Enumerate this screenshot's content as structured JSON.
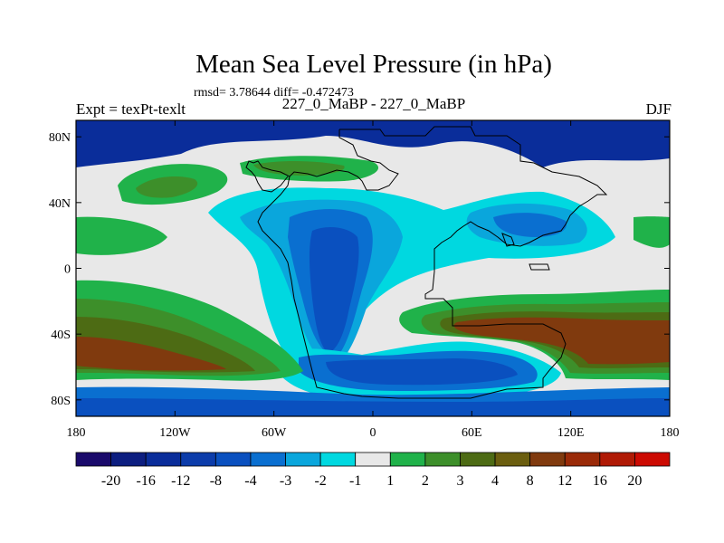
{
  "chart_data": {
    "type": "heatmap",
    "title": "Mean Sea Level Pressure (in hPa)",
    "stats_text": "rmsd= 3.78644 diff= -0.472473",
    "left_label": "Expt = texPt-texlt",
    "center_label": "227_0_MaBP - 227_0_MaBP",
    "right_label": "DJF",
    "x_axis": {
      "range": [
        -180,
        180
      ],
      "ticks": [
        {
          "value": -180,
          "label": "180"
        },
        {
          "value": -120,
          "label": "120W"
        },
        {
          "value": -60,
          "label": "60W"
        },
        {
          "value": 0,
          "label": "0"
        },
        {
          "value": 60,
          "label": "60E"
        },
        {
          "value": 120,
          "label": "120E"
        },
        {
          "value": 180,
          "label": "180"
        }
      ]
    },
    "y_axis": {
      "range": [
        -90,
        90
      ],
      "ticks": [
        {
          "value": 80,
          "label": "80N"
        },
        {
          "value": 40,
          "label": "40N"
        },
        {
          "value": 0,
          "label": "0"
        },
        {
          "value": -40,
          "label": "40S"
        },
        {
          "value": -80,
          "label": "80S"
        }
      ]
    },
    "colorbar": {
      "colors": [
        "#1a0a6b",
        "#0d1e80",
        "#0a2d9a",
        "#0c3caa",
        "#0a50bf",
        "#0a6fd0",
        "#0aa6dc",
        "#00d8e0",
        "#e8e8e8",
        "#20b24a",
        "#3d8f2a",
        "#4d6b14",
        "#6b5e0f",
        "#803a0e",
        "#9a2a08",
        "#b01a05",
        "#cc0a02"
      ],
      "labels": [
        "-20",
        "-16",
        "-12",
        "-8",
        "-4",
        "-3",
        "-2",
        "-1",
        "1",
        "2",
        "3",
        "4",
        "8",
        "12",
        "16",
        "20"
      ]
    },
    "field_colors": {
      "deep_blue": "#0a2d9a",
      "blue": "#0a50bf",
      "mid_blue": "#0a6fd0",
      "light_blue": "#0aa6dc",
      "cyan": "#00d8e0",
      "neutral": "#e8e8e8",
      "green": "#20b24a",
      "dark_green": "#3d8f2a",
      "olive": "#4d6b14",
      "brown": "#803a0e"
    }
  }
}
